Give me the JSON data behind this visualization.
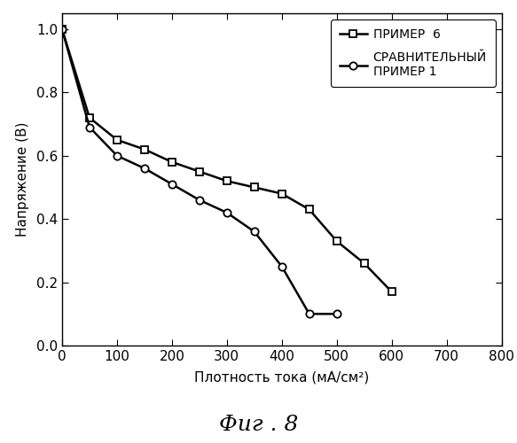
{
  "series1_label": "ПРИМЕР  6",
  "series2_label": "СРАВНИТЕЛЬНЫЙ\nПРИМЕР 1",
  "series1_x": [
    0,
    50,
    100,
    150,
    200,
    250,
    300,
    350,
    400,
    450,
    500,
    550,
    600
  ],
  "series1_y": [
    1.0,
    0.72,
    0.65,
    0.62,
    0.58,
    0.55,
    0.52,
    0.5,
    0.48,
    0.43,
    0.33,
    0.26,
    0.17
  ],
  "series2_x": [
    0,
    50,
    100,
    150,
    200,
    250,
    300,
    350,
    400,
    450,
    500
  ],
  "series2_y": [
    1.0,
    0.69,
    0.6,
    0.56,
    0.51,
    0.46,
    0.42,
    0.36,
    0.25,
    0.1,
    0.1
  ],
  "xlabel": "Плотность тока (мА/см²)",
  "ylabel": "Напряжение (В)",
  "figcaption": "Фиг . 8",
  "xlim": [
    0,
    800
  ],
  "ylim": [
    0,
    1.05
  ],
  "xticks": [
    0,
    100,
    200,
    300,
    400,
    500,
    600,
    700,
    800
  ],
  "yticks": [
    0,
    0.2,
    0.4,
    0.6,
    0.8,
    1.0
  ],
  "line_color": "#000000",
  "marker1": "s",
  "marker2": "o",
  "figsize": [
    5.83,
    5.0
  ],
  "dpi": 100,
  "markersize": 6,
  "linewidth": 1.8,
  "tick_labelsize": 11,
  "axis_labelsize": 11,
  "legend_fontsize": 10,
  "caption_fontsize": 18
}
